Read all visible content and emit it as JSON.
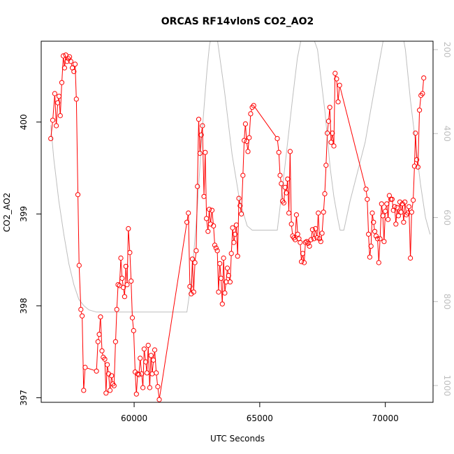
{
  "chart_data": {
    "type": "line",
    "title": "ORCAS RF14vlonS CO2_AO2",
    "xlabel": "UTC Seconds",
    "ylabel": "CO2_AO2",
    "xlim": [
      56300,
      71900
    ],
    "ylim": [
      396.95,
      400.88
    ],
    "y2lim": [
      1040,
      180
    ],
    "x_ticks": [
      60000,
      65000,
      70000
    ],
    "y_ticks": [
      397,
      398,
      399,
      400
    ],
    "y2_ticks": [
      200,
      400,
      600,
      800,
      1000
    ],
    "grid": false,
    "colors": {
      "co2": "#ff0000",
      "pressure": "#bebebe"
    },
    "series": [
      {
        "key": "co2",
        "style": "line-points",
        "points": [
          [
            56680,
            399.82
          ],
          [
            56760,
            400.02
          ],
          [
            56840,
            400.31
          ],
          [
            56900,
            399.96
          ],
          [
            56960,
            400.21
          ],
          [
            57010,
            400.28
          ],
          [
            57060,
            400.07
          ],
          [
            57120,
            400.43
          ],
          [
            57180,
            400.72
          ],
          [
            57230,
            400.59
          ],
          [
            57280,
            400.73
          ],
          [
            57330,
            400.66
          ],
          [
            57380,
            400.69
          ],
          [
            57430,
            400.71
          ],
          [
            57480,
            400.66
          ],
          [
            57540,
            400.59
          ],
          [
            57600,
            400.55
          ],
          [
            57650,
            400.63
          ],
          [
            57700,
            400.25
          ],
          [
            57760,
            399.21
          ],
          [
            57810,
            398.44
          ],
          [
            57880,
            397.96
          ],
          [
            57930,
            397.89
          ],
          [
            57990,
            397.08
          ],
          [
            58050,
            397.33
          ],
          [
            58500,
            397.29
          ],
          [
            58560,
            397.61
          ],
          [
            58610,
            397.69
          ],
          [
            58660,
            397.88
          ],
          [
            58720,
            397.51
          ],
          [
            58770,
            397.44
          ],
          [
            58830,
            397.42
          ],
          [
            58880,
            397.05
          ],
          [
            58930,
            397.36
          ],
          [
            58980,
            397.26
          ],
          [
            59040,
            397.08
          ],
          [
            59100,
            397.24
          ],
          [
            59150,
            397.15
          ],
          [
            59200,
            397.13
          ],
          [
            59260,
            397.61
          ],
          [
            59310,
            397.96
          ],
          [
            59360,
            398.23
          ],
          [
            59420,
            398.22
          ],
          [
            59470,
            398.52
          ],
          [
            59520,
            398.3
          ],
          [
            59570,
            398.2
          ],
          [
            59620,
            398.1
          ],
          [
            59670,
            398.43
          ],
          [
            59720,
            398.23
          ],
          [
            59770,
            398.84
          ],
          [
            59830,
            398.58
          ],
          [
            59880,
            398.27
          ],
          [
            59930,
            397.87
          ],
          [
            59980,
            397.73
          ],
          [
            60040,
            397.28
          ],
          [
            60090,
            397.04
          ],
          [
            60140,
            397.26
          ],
          [
            60190,
            397.25
          ],
          [
            60240,
            397.43
          ],
          [
            60300,
            397.26
          ],
          [
            60350,
            397.11
          ],
          [
            60400,
            397.53
          ],
          [
            60460,
            397.39
          ],
          [
            60510,
            397.27
          ],
          [
            60560,
            397.57
          ],
          [
            60620,
            397.11
          ],
          [
            60670,
            397.46
          ],
          [
            60720,
            397.26
          ],
          [
            60770,
            397.41
          ],
          [
            60820,
            397.52
          ],
          [
            60880,
            397.27
          ],
          [
            60940,
            397.12
          ],
          [
            61000,
            396.98
          ],
          [
            62100,
            398.91
          ],
          [
            62160,
            399.01
          ],
          [
            62220,
            398.21
          ],
          [
            62270,
            398.13
          ],
          [
            62320,
            398.51
          ],
          [
            62370,
            398.15
          ],
          [
            62420,
            398.47
          ],
          [
            62470,
            398.6
          ],
          [
            62520,
            399.3
          ],
          [
            62570,
            400.03
          ],
          [
            62620,
            399.66
          ],
          [
            62670,
            399.86
          ],
          [
            62720,
            399.96
          ],
          [
            62780,
            399.19
          ],
          [
            62830,
            399.67
          ],
          [
            62880,
            398.95
          ],
          [
            62940,
            398.81
          ],
          [
            62990,
            399.05
          ],
          [
            63040,
            398.89
          ],
          [
            63100,
            399.04
          ],
          [
            63160,
            398.87
          ],
          [
            63210,
            398.66
          ],
          [
            63260,
            398.63
          ],
          [
            63310,
            398.6
          ],
          [
            63360,
            398.15
          ],
          [
            63410,
            398.46
          ],
          [
            63460,
            398.3
          ],
          [
            63510,
            398.02
          ],
          [
            63560,
            398.52
          ],
          [
            63610,
            398.14
          ],
          [
            63660,
            398.26
          ],
          [
            63710,
            398.41
          ],
          [
            63760,
            398.33
          ],
          [
            63820,
            398.26
          ],
          [
            63870,
            398.57
          ],
          [
            63920,
            398.85
          ],
          [
            63970,
            398.69
          ],
          [
            64020,
            398.78
          ],
          [
            64070,
            398.88
          ],
          [
            64120,
            398.54
          ],
          [
            64170,
            399.17
          ],
          [
            64220,
            399.09
          ],
          [
            64270,
            399.0
          ],
          [
            64330,
            399.42
          ],
          [
            64380,
            399.8
          ],
          [
            64430,
            399.98
          ],
          [
            64480,
            399.79
          ],
          [
            64530,
            399.68
          ],
          [
            64580,
            399.83
          ],
          [
            64640,
            400.09
          ],
          [
            64700,
            400.16
          ],
          [
            64760,
            400.18
          ],
          [
            65700,
            399.82
          ],
          [
            65760,
            399.67
          ],
          [
            65810,
            399.42
          ],
          [
            65860,
            399.33
          ],
          [
            65910,
            399.14
          ],
          [
            65960,
            399.12
          ],
          [
            66010,
            399.29
          ],
          [
            66060,
            399.23
          ],
          [
            66110,
            399.38
          ],
          [
            66160,
            399.01
          ],
          [
            66210,
            399.68
          ],
          [
            66260,
            398.89
          ],
          [
            66310,
            398.76
          ],
          [
            66360,
            398.74
          ],
          [
            66410,
            398.72
          ],
          [
            66460,
            398.99
          ],
          [
            66510,
            398.78
          ],
          [
            66560,
            398.73
          ],
          [
            66610,
            398.69
          ],
          [
            66660,
            398.48
          ],
          [
            66710,
            398.57
          ],
          [
            66770,
            398.47
          ],
          [
            66820,
            398.69
          ],
          [
            66870,
            398.7
          ],
          [
            66920,
            398.68
          ],
          [
            66980,
            398.65
          ],
          [
            67040,
            398.72
          ],
          [
            67100,
            398.83
          ],
          [
            67160,
            398.73
          ],
          [
            67220,
            398.84
          ],
          [
            67280,
            398.74
          ],
          [
            67330,
            399.01
          ],
          [
            67380,
            398.73
          ],
          [
            67430,
            398.7
          ],
          [
            67480,
            398.79
          ],
          [
            67540,
            399.02
          ],
          [
            67590,
            399.22
          ],
          [
            67640,
            399.53
          ],
          [
            67690,
            399.88
          ],
          [
            67740,
            400.01
          ],
          [
            67790,
            400.16
          ],
          [
            67840,
            399.78
          ],
          [
            67890,
            399.88
          ],
          [
            67950,
            399.74
          ],
          [
            68000,
            400.53
          ],
          [
            68060,
            400.47
          ],
          [
            68120,
            400.22
          ],
          [
            68180,
            400.4
          ],
          [
            69230,
            399.27
          ],
          [
            69280,
            399.16
          ],
          [
            69330,
            398.78
          ],
          [
            69380,
            398.53
          ],
          [
            69430,
            398.65
          ],
          [
            69480,
            399.01
          ],
          [
            69530,
            398.91
          ],
          [
            69580,
            398.81
          ],
          [
            69630,
            398.76
          ],
          [
            69690,
            398.73
          ],
          [
            69740,
            398.47
          ],
          [
            69790,
            398.73
          ],
          [
            69850,
            399.11
          ],
          [
            69900,
            398.98
          ],
          [
            69950,
            398.7
          ],
          [
            70000,
            399.03
          ],
          [
            70060,
            399.11
          ],
          [
            70110,
            398.94
          ],
          [
            70160,
            399.2
          ],
          [
            70220,
            399.16
          ],
          [
            70270,
            399.16
          ],
          [
            70320,
            399.04
          ],
          [
            70370,
            399.08
          ],
          [
            70420,
            398.89
          ],
          [
            70470,
            399.07
          ],
          [
            70520,
            398.98
          ],
          [
            70580,
            399.13
          ],
          [
            70630,
            399.02
          ],
          [
            70680,
            399.11
          ],
          [
            70730,
            398.91
          ],
          [
            70780,
            399.13
          ],
          [
            70840,
            398.99
          ],
          [
            70890,
            399.01
          ],
          [
            70940,
            399.08
          ],
          [
            71000,
            398.52
          ],
          [
            71050,
            399.02
          ],
          [
            71110,
            399.15
          ],
          [
            71160,
            399.52
          ],
          [
            71200,
            399.88
          ],
          [
            71250,
            399.59
          ],
          [
            71300,
            399.51
          ],
          [
            71360,
            400.13
          ],
          [
            71420,
            400.29
          ],
          [
            71480,
            400.31
          ],
          [
            71530,
            400.48
          ]
        ]
      },
      {
        "key": "pressure",
        "axis": "right",
        "style": "line",
        "points": [
          [
            56680,
            380
          ],
          [
            56800,
            460
          ],
          [
            57000,
            560
          ],
          [
            57200,
            640
          ],
          [
            57400,
            710
          ],
          [
            57600,
            760
          ],
          [
            57800,
            795
          ],
          [
            58000,
            810
          ],
          [
            58200,
            820
          ],
          [
            58500,
            825
          ],
          [
            59500,
            825
          ],
          [
            60500,
            825
          ],
          [
            61500,
            825
          ],
          [
            62100,
            825
          ],
          [
            62300,
            740
          ],
          [
            62500,
            590
          ],
          [
            62700,
            400
          ],
          [
            62900,
            250
          ],
          [
            63000,
            190
          ],
          [
            63100,
            160
          ],
          [
            63300,
            170
          ],
          [
            63600,
            300
          ],
          [
            63900,
            450
          ],
          [
            64200,
            560
          ],
          [
            64500,
            620
          ],
          [
            64700,
            630
          ],
          [
            65700,
            630
          ],
          [
            66000,
            480
          ],
          [
            66300,
            320
          ],
          [
            66500,
            220
          ],
          [
            66700,
            160
          ],
          [
            67000,
            150
          ],
          [
            67300,
            200
          ],
          [
            67600,
            350
          ],
          [
            67800,
            480
          ],
          [
            67950,
            550
          ],
          [
            68100,
            600
          ],
          [
            68200,
            630
          ],
          [
            68350,
            630
          ],
          [
            68600,
            560
          ],
          [
            68900,
            490
          ],
          [
            69200,
            420
          ],
          [
            69400,
            350
          ],
          [
            69700,
            250
          ],
          [
            70000,
            150
          ],
          [
            70300,
            100
          ],
          [
            70500,
            100
          ],
          [
            70800,
            200
          ],
          [
            71000,
            320
          ],
          [
            71200,
            420
          ],
          [
            71400,
            520
          ],
          [
            71600,
            600
          ],
          [
            71780,
            640
          ]
        ]
      }
    ]
  }
}
